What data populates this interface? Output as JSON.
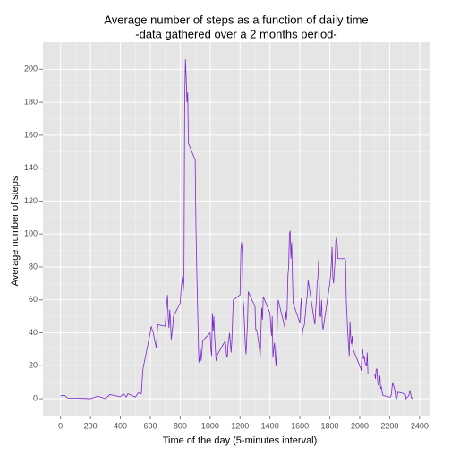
{
  "chart_data": {
    "type": "line",
    "title": "Average number of steps as a function of daily time",
    "subtitle": "-data gathered over a 2 months period-",
    "xlabel": "Time of the day (5-minutes interval)",
    "ylabel": "Average number of steps",
    "color": "#7d26cd",
    "grid": true,
    "x": [
      0,
      25,
      50,
      100,
      150,
      200,
      250,
      300,
      330,
      400,
      420,
      440,
      450,
      500,
      520,
      540,
      550,
      555,
      600,
      605,
      620,
      630,
      640,
      650,
      700,
      705,
      710,
      715,
      720,
      725,
      730,
      735,
      740,
      745,
      750,
      755,
      800,
      805,
      810,
      815,
      820,
      825,
      830,
      835,
      840,
      845,
      850,
      855,
      900,
      905,
      910,
      915,
      920,
      925,
      930,
      935,
      940,
      945,
      950,
      1000,
      1005,
      1010,
      1015,
      1020,
      1025,
      1030,
      1040,
      1050,
      1100,
      1105,
      1110,
      1115,
      1120,
      1130,
      1140,
      1145,
      1150,
      1155,
      1200,
      1205,
      1210,
      1215,
      1220,
      1225,
      1230,
      1235,
      1240,
      1245,
      1250,
      1255,
      1300,
      1305,
      1310,
      1320,
      1330,
      1335,
      1340,
      1345,
      1350,
      1355,
      1400,
      1405,
      1410,
      1415,
      1420,
      1425,
      1430,
      1440,
      1445,
      1450,
      1455,
      1500,
      1505,
      1510,
      1515,
      1520,
      1525,
      1530,
      1535,
      1540,
      1545,
      1550,
      1555,
      1600,
      1605,
      1610,
      1615,
      1620,
      1630,
      1640,
      1645,
      1650,
      1655,
      1700,
      1705,
      1710,
      1715,
      1720,
      1725,
      1730,
      1735,
      1740,
      1745,
      1750,
      1755,
      1800,
      1805,
      1810,
      1815,
      1820,
      1825,
      1830,
      1835,
      1840,
      1845,
      1850,
      1855,
      1900,
      1905,
      1910,
      1915,
      1920,
      1925,
      1930,
      1935,
      1940,
      1945,
      1950,
      1955,
      2000,
      2005,
      2010,
      2015,
      2020,
      2025,
      2030,
      2035,
      2040,
      2045,
      2050,
      2055,
      2100,
      2105,
      2110,
      2115,
      2120,
      2125,
      2130,
      2135,
      2140,
      2145,
      2150,
      2155,
      2200,
      2205,
      2210,
      2215,
      2220,
      2225,
      2230,
      2235,
      2240,
      2245,
      2250,
      2255,
      2300,
      2305,
      2310,
      2315,
      2320,
      2325,
      2330,
      2335,
      2340,
      2345,
      2350,
      2355
    ],
    "values": [
      1.7,
      2.1,
      0.3,
      0.3,
      0.2,
      0,
      1.5,
      0,
      2.5,
      1.2,
      3,
      1,
      3,
      1,
      3.5,
      3,
      17,
      20,
      40,
      44,
      40,
      35,
      31,
      45,
      44,
      52,
      58,
      63,
      49,
      43,
      54,
      47,
      36,
      40,
      44,
      50,
      58,
      66,
      70,
      74,
      65,
      72,
      180,
      206,
      195,
      180,
      186,
      155,
      145,
      105,
      80,
      60,
      40,
      22,
      25,
      30,
      23,
      28,
      35,
      40,
      30,
      26,
      52,
      41,
      50,
      38,
      23,
      27,
      35,
      32,
      26,
      25,
      33,
      40,
      28,
      35,
      48,
      60,
      63,
      90,
      95,
      89,
      60,
      55,
      44,
      33,
      27,
      37,
      46,
      65,
      56,
      42,
      42,
      37,
      30,
      25,
      42,
      55,
      48,
      62,
      52,
      44,
      38,
      50,
      25,
      30,
      34,
      20,
      30,
      50,
      60,
      43,
      53,
      48,
      55,
      75,
      80,
      100,
      102,
      85,
      95,
      75,
      58,
      46,
      57,
      61,
      38,
      42,
      45,
      55,
      60,
      63,
      72,
      45,
      54,
      59,
      70,
      73,
      84,
      66,
      50,
      50,
      60,
      45,
      42,
      70,
      75,
      82,
      92,
      74,
      70,
      77,
      84,
      96,
      98,
      93,
      85,
      85,
      84,
      60,
      50,
      40,
      33,
      26,
      47,
      37,
      33,
      38,
      30,
      20,
      19,
      17,
      27,
      30,
      24,
      26,
      22,
      21,
      20,
      28,
      15,
      15,
      12,
      18,
      18,
      10,
      8,
      10,
      14,
      6,
      7,
      4,
      2,
      1,
      1,
      2,
      6,
      10,
      8,
      7,
      5,
      1,
      0,
      1,
      4,
      3,
      2.5,
      0,
      0.8,
      1,
      1.5,
      2.6,
      4.7,
      3.3,
      0.6,
      0.2,
      1.1
    ],
    "xlim": [
      -117.75,
      2472.75
    ],
    "xticks": [
      0,
      200,
      400,
      600,
      800,
      1000,
      1200,
      1400,
      1600,
      1800,
      2000,
      2200,
      2400
    ],
    "ylim": [
      -10.3,
      216.5
    ],
    "yticks": [
      0,
      20,
      40,
      60,
      80,
      100,
      120,
      140,
      160,
      180,
      200
    ]
  }
}
